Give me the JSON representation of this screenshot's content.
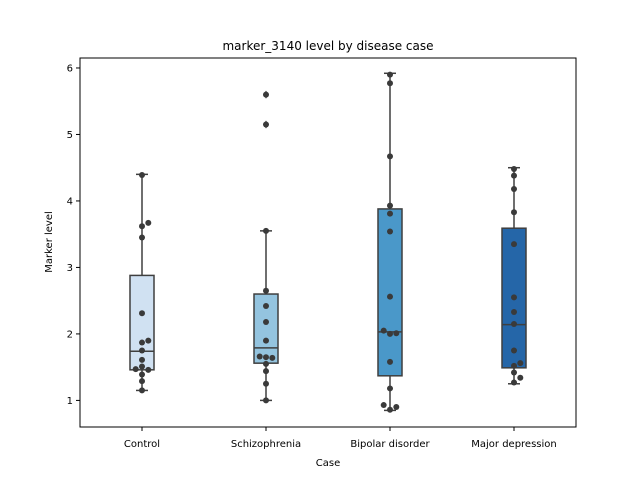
{
  "chart_data": {
    "type": "box",
    "title": "marker_3140 level by disease case",
    "xlabel": "Case",
    "ylabel": "Marker level",
    "ylim": [
      0.6,
      6.15
    ],
    "yticks": [
      1,
      2,
      3,
      4,
      5,
      6
    ],
    "grid": false,
    "legend": "none",
    "categories": [
      "Control",
      "Schizophrenia",
      "Bipolar disorder",
      "Major depression"
    ],
    "colors": [
      "#d0e1f2",
      "#94c4df",
      "#4a98c9",
      "#2566a8"
    ],
    "boxes": [
      {
        "q1": 1.46,
        "median": 1.74,
        "q3": 2.88,
        "whisker_low": 1.15,
        "whisker_high": 4.4,
        "outliers": []
      },
      {
        "q1": 1.56,
        "median": 1.79,
        "q3": 2.6,
        "whisker_low": 1.0,
        "whisker_high": 3.55,
        "outliers": [
          5.6,
          5.15
        ]
      },
      {
        "q1": 1.37,
        "median": 2.03,
        "q3": 3.88,
        "whisker_low": 0.85,
        "whisker_high": 5.92,
        "outliers": []
      },
      {
        "q1": 1.49,
        "median": 2.14,
        "q3": 3.59,
        "whisker_low": 1.25,
        "whisker_high": 4.5,
        "outliers": []
      }
    ],
    "points": [
      {
        "category": "Control",
        "values": [
          4.39,
          3.67,
          3.62,
          3.45,
          2.31,
          1.9,
          1.87,
          1.75,
          1.61,
          1.51,
          1.47,
          1.46,
          1.39,
          1.29,
          1.15
        ]
      },
      {
        "category": "Schizophrenia",
        "values": [
          5.6,
          5.15,
          3.55,
          2.65,
          2.42,
          2.18,
          1.9,
          1.66,
          1.65,
          1.64,
          1.55,
          1.44,
          1.25,
          1.0
        ]
      },
      {
        "category": "Bipolar disorder",
        "values": [
          5.9,
          5.77,
          4.67,
          3.93,
          3.81,
          3.54,
          2.56,
          2.05,
          2.01,
          2.0,
          1.58,
          1.18,
          0.93,
          0.9,
          0.86
        ]
      },
      {
        "category": "Major depression",
        "values": [
          4.48,
          4.38,
          4.18,
          3.83,
          3.35,
          2.55,
          2.33,
          2.15,
          1.75,
          1.56,
          1.52,
          1.42,
          1.34,
          1.27
        ]
      }
    ]
  }
}
